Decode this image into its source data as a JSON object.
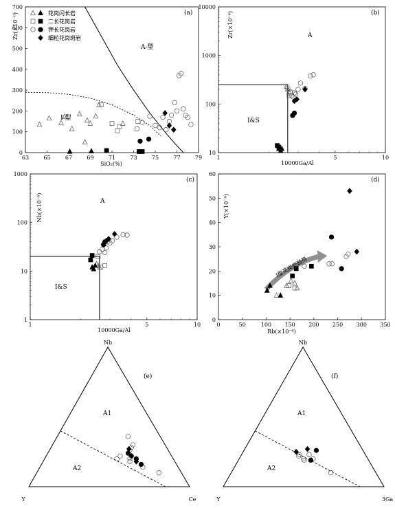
{
  "colors": {
    "axis": "#000000",
    "grid": "none",
    "arrow": "#909090",
    "open_symbol": "#555555",
    "filled_symbol": "#000000"
  },
  "legend": {
    "placement": "top-left of panel (a)",
    "entries": [
      {
        "label": "花岗闪长岩",
        "symbols": [
          "open-triangle",
          "filled-triangle"
        ]
      },
      {
        "label": "二长花岗岩",
        "symbols": [
          "open-square",
          "filled-square"
        ]
      },
      {
        "label": "钾长花岗岩",
        "symbols": [
          "open-circle",
          "filled-circle"
        ]
      },
      {
        "label": "细粒花岗斑岩",
        "symbols": [
          "filled-diamond"
        ]
      }
    ]
  },
  "chart_data": [
    {
      "panel": "(a)",
      "type": "scatter",
      "xlabel": "SiO₂(%)",
      "ylabel": "Zr(×10⁻⁶)",
      "xlim": [
        63,
        79
      ],
      "ylim": [
        0,
        700
      ],
      "xticks": [
        63,
        65,
        67,
        69,
        71,
        73,
        75,
        77,
        79
      ],
      "yticks": [
        0,
        100,
        200,
        300,
        400,
        500,
        600,
        700
      ],
      "field_labels": [
        "A-型",
        "I-型"
      ],
      "series": [
        {
          "name": "花岗闪长岩",
          "symbol": "open-triangle",
          "x": [
            64.3,
            65.2,
            66.3,
            66.6,
            67.3,
            68.0,
            68.5,
            68.7,
            69.0,
            69.5,
            69.8,
            72.0
          ],
          "y": [
            135,
            165,
            142,
            172,
            115,
            185,
            50,
            155,
            140,
            175,
            230,
            140
          ]
        },
        {
          "name": "花岗闪长岩",
          "symbol": "filled-triangle",
          "x": [
            67.1,
            69.1
          ],
          "y": [
            5,
            7
          ]
        },
        {
          "name": "二长花岗岩",
          "symbol": "open-square",
          "x": [
            70.0,
            71.0,
            71.5,
            71.7,
            73.4
          ],
          "y": [
            230,
            140,
            105,
            125,
            150
          ]
        },
        {
          "name": "二长花岗岩",
          "symbol": "filled-square",
          "x": [
            70.5,
            73.5,
            73.8
          ],
          "y": [
            10,
            5,
            5
          ]
        },
        {
          "name": "钾长花岗岩",
          "symbol": "open-circle",
          "x": [
            73.3,
            73.8,
            74.5,
            75.0,
            75.4,
            75.7,
            76.0,
            76.3,
            76.5,
            76.8,
            77.0,
            77.2,
            77.4,
            77.6,
            77.8,
            78.0,
            78.3
          ],
          "y": [
            115,
            145,
            175,
            130,
            120,
            170,
            110,
            150,
            180,
            240,
            200,
            370,
            380,
            210,
            180,
            170,
            135
          ]
        },
        {
          "name": "钾长花岗岩",
          "symbol": "filled-circle",
          "x": [
            73.6,
            74.4
          ],
          "y": [
            55,
            65
          ]
        },
        {
          "name": "细粒花岗斑岩",
          "symbol": "filled-diamond",
          "x": [
            75.9,
            76.3,
            76.7
          ],
          "y": [
            190,
            130,
            110
          ]
        }
      ]
    },
    {
      "panel": "(b)",
      "type": "scatter",
      "xlabel": "10000Ga/Al",
      "ylabel": "Zr(×10⁻⁶)",
      "xscale": "log",
      "yscale": "log",
      "xlim": [
        1,
        10
      ],
      "ylim": [
        10,
        10000
      ],
      "xticks": [
        1,
        5,
        10
      ],
      "yticks": [
        10,
        100,
        1000,
        10000
      ],
      "field_labels": [
        "A",
        "I&S"
      ],
      "series": [
        {
          "name": "花岗闪长岩",
          "symbol": "open-triangle",
          "x": [
            2.55,
            2.6,
            2.65
          ],
          "y": [
            230,
            200,
            180
          ]
        },
        {
          "name": "花岗闪长岩",
          "symbol": "filled-triangle",
          "x": [
            2.3,
            2.36,
            2.4
          ],
          "y": [
            12,
            11,
            12
          ]
        },
        {
          "name": "二长花岗岩",
          "symbol": "open-square",
          "x": [
            2.65,
            2.7
          ],
          "y": [
            150,
            170
          ]
        },
        {
          "name": "二长花岗岩",
          "symbol": "filled-square",
          "x": [
            2.25,
            2.3
          ],
          "y": [
            14,
            13
          ]
        },
        {
          "name": "钾长花岗岩",
          "symbol": "open-circle",
          "x": [
            2.6,
            2.7,
            2.75,
            2.8,
            2.85,
            2.9,
            3.0,
            3.1,
            3.3,
            3.55,
            3.7
          ],
          "y": [
            210,
            180,
            150,
            140,
            170,
            160,
            200,
            270,
            210,
            380,
            400
          ]
        },
        {
          "name": "钾长花岗岩",
          "symbol": "filled-circle",
          "x": [
            2.78,
            2.85
          ],
          "y": [
            58,
            65
          ]
        },
        {
          "name": "细粒花岗斑岩",
          "symbol": "filled-diamond",
          "x": [
            2.85,
            2.95,
            3.3
          ],
          "y": [
            115,
            125,
            200
          ]
        }
      ]
    },
    {
      "panel": "(c)",
      "type": "scatter",
      "xlabel": "10000Ga/Al",
      "ylabel": "Nb(×10⁻⁶)",
      "xscale": "log",
      "yscale": "log",
      "xlim": [
        1,
        10
      ],
      "ylim": [
        1,
        1000
      ],
      "xticks": [
        1,
        5,
        10
      ],
      "yticks": [
        1,
        10,
        100,
        1000
      ],
      "field_labels": [
        "A",
        "I&S"
      ],
      "series": [
        {
          "name": "花岗闪长岩",
          "symbol": "open-triangle",
          "x": [
            2.5,
            2.55,
            2.6
          ],
          "y": [
            14,
            13,
            12
          ]
        },
        {
          "name": "花岗闪长岩",
          "symbol": "filled-triangle",
          "x": [
            2.35,
            2.4,
            2.45
          ],
          "y": [
            12,
            11,
            13
          ]
        },
        {
          "name": "二长花岗岩",
          "symbol": "open-square",
          "x": [
            2.55,
            2.65,
            2.8
          ],
          "y": [
            20,
            12,
            13
          ]
        },
        {
          "name": "二长花岗岩",
          "symbol": "filled-square",
          "x": [
            2.3,
            2.35
          ],
          "y": [
            17,
            21
          ]
        },
        {
          "name": "钾长花岗岩",
          "symbol": "open-circle",
          "x": [
            2.6,
            2.7,
            2.75,
            2.8,
            2.85,
            2.9,
            3.0,
            3.1,
            3.3,
            3.6,
            3.8
          ],
          "y": [
            25,
            28,
            35,
            24,
            30,
            40,
            38,
            42,
            50,
            56,
            55
          ]
        },
        {
          "name": "钾长花岗岩",
          "symbol": "filled-circle",
          "x": [
            2.75,
            2.8
          ],
          "y": [
            35,
            40
          ]
        },
        {
          "name": "细粒花岗斑岩",
          "symbol": "filled-diamond",
          "x": [
            2.85,
            2.95,
            3.2
          ],
          "y": [
            42,
            46,
            58
          ]
        }
      ]
    },
    {
      "panel": "(d)",
      "type": "scatter",
      "xlabel": "Rb(×10⁻⁶)",
      "ylabel": "Y(×10⁻⁶)",
      "xlim": [
        0,
        350
      ],
      "ylim": [
        0,
        60
      ],
      "xticks": [
        0,
        50,
        100,
        150,
        200,
        250,
        300,
        350
      ],
      "yticks": [
        0,
        10,
        20,
        30,
        40,
        50,
        60
      ],
      "annotations": [
        "I型花岗岩趋势"
      ],
      "series": [
        {
          "name": "花岗闪长岩",
          "symbol": "open-triangle",
          "x": [
            122,
            143,
            152,
            160,
            165
          ],
          "y": [
            10,
            14,
            16,
            15,
            13
          ]
        },
        {
          "name": "花岗闪长岩",
          "symbol": "filled-triangle",
          "x": [
            102,
            108,
            130
          ],
          "y": [
            12,
            14,
            10
          ]
        },
        {
          "name": "二长花岗岩",
          "symbol": "open-square",
          "x": [
            148,
            160
          ],
          "y": [
            14,
            13
          ]
        },
        {
          "name": "二长花岗岩",
          "symbol": "filled-square",
          "x": [
            155,
            163,
            195
          ],
          "y": [
            18,
            21,
            22
          ]
        },
        {
          "name": "钾长花岗岩",
          "symbol": "open-circle",
          "x": [
            180,
            232,
            238,
            268,
            272
          ],
          "y": [
            22,
            23,
            23,
            26,
            27
          ]
        },
        {
          "name": "钾长花岗岩",
          "symbol": "filled-circle",
          "x": [
            237,
            258
          ],
          "y": [
            34,
            21
          ]
        },
        {
          "name": "细粒花岗斑岩",
          "symbol": "filled-diamond",
          "x": [
            275,
            290
          ],
          "y": [
            53,
            28
          ]
        }
      ]
    },
    {
      "panel": "(e)",
      "type": "scatter",
      "subtype": "ternary",
      "vertices": [
        "Nb",
        "Y",
        "Ce"
      ],
      "field_labels": [
        "A1",
        "A2"
      ],
      "series": [
        {
          "name": "open",
          "symbol": "open-circle",
          "points": [
            [
              0.2,
              0.35,
              0.45
            ],
            [
              0.22,
              0.32,
              0.46
            ],
            [
              0.26,
              0.24,
              0.5
            ],
            [
              0.28,
              0.22,
              0.5
            ],
            [
              0.3,
              0.2,
              0.5
            ],
            [
              0.36,
              0.2,
              0.44
            ],
            [
              0.22,
              0.25,
              0.53
            ],
            [
              0.2,
              0.27,
              0.53
            ],
            [
              0.18,
              0.28,
              0.54
            ],
            [
              0.14,
              0.22,
              0.64
            ],
            [
              0.1,
              0.14,
              0.76
            ]
          ]
        },
        {
          "name": "filled-circle",
          "symbol": "filled-circle",
          "points": [
            [
              0.24,
              0.26,
              0.5
            ],
            [
              0.2,
              0.23,
              0.57
            ],
            [
              0.16,
              0.22,
              0.62
            ]
          ]
        },
        {
          "name": "filled-diamond",
          "symbol": "filled-diamond",
          "points": [
            [
              0.22,
              0.25,
              0.53
            ],
            [
              0.27,
              0.24,
              0.49
            ],
            [
              0.18,
              0.24,
              0.58
            ]
          ]
        }
      ]
    },
    {
      "panel": "(f)",
      "type": "scatter",
      "subtype": "ternary",
      "vertices": [
        "Nb",
        "Y",
        "3Ga"
      ],
      "field_labels": [
        "A1",
        "A2"
      ],
      "series": [
        {
          "name": "open",
          "symbol": "open-circle",
          "points": [
            [
              0.22,
              0.42,
              0.36
            ],
            [
              0.23,
              0.41,
              0.36
            ],
            [
              0.2,
              0.4,
              0.4
            ],
            [
              0.19,
              0.4,
              0.41
            ],
            [
              0.23,
              0.35,
              0.42
            ],
            [
              0.2,
              0.34,
              0.46
            ],
            [
              0.1,
              0.28,
              0.62
            ]
          ]
        },
        {
          "name": "filled-circle",
          "symbol": "filled-circle",
          "points": [
            [
              0.19,
              0.36,
              0.45
            ],
            [
              0.26,
              0.29,
              0.45
            ]
          ]
        },
        {
          "name": "filled-diamond",
          "symbol": "filled-diamond",
          "points": [
            [
              0.25,
              0.42,
              0.33
            ],
            [
              0.27,
              0.34,
              0.39
            ]
          ]
        }
      ]
    }
  ]
}
